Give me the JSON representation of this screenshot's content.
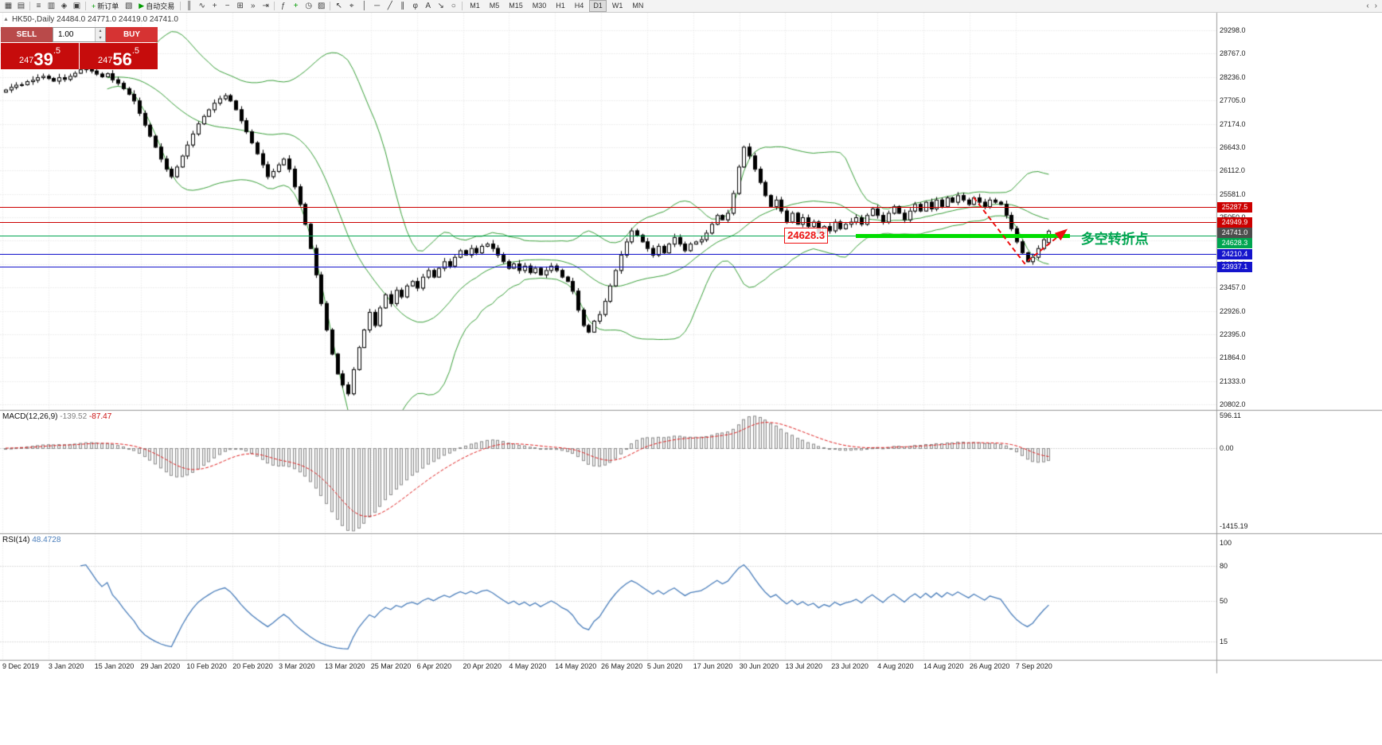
{
  "toolbar": {
    "items": [
      {
        "t": "icon",
        "name": "new-chart-icon",
        "glyph": "▦"
      },
      {
        "t": "icon",
        "name": "profiles-icon",
        "glyph": "▤"
      },
      {
        "t": "sep"
      },
      {
        "t": "icon",
        "name": "market-watch-icon",
        "glyph": "≡"
      },
      {
        "t": "icon",
        "name": "data-window-icon",
        "glyph": "▥"
      },
      {
        "t": "icon",
        "name": "navigator-icon",
        "glyph": "◈"
      },
      {
        "t": "icon",
        "name": "terminal-icon",
        "glyph": "▣"
      },
      {
        "t": "sep"
      },
      {
        "t": "button",
        "name": "new-order-button",
        "label": "新订单",
        "glyph": "+",
        "glyph_color": "#009b00"
      },
      {
        "t": "icon",
        "name": "strategy-tester-icon",
        "glyph": "▧"
      },
      {
        "t": "button",
        "name": "autotrading-button",
        "label": "自动交易",
        "glyph": "▶",
        "glyph_color": "#009b00"
      },
      {
        "t": "sep"
      },
      {
        "t": "icon",
        "name": "candlestick-chart-icon",
        "glyph": "║"
      },
      {
        "t": "icon",
        "name": "line-chart-icon",
        "glyph": "∿"
      },
      {
        "t": "icon",
        "name": "zoom-in-icon",
        "glyph": "+"
      },
      {
        "t": "icon",
        "name": "zoom-out-icon",
        "glyph": "−"
      },
      {
        "t": "icon",
        "name": "tile-windows-icon",
        "glyph": "⊞"
      },
      {
        "t": "icon",
        "name": "auto-scroll-icon",
        "glyph": "»"
      },
      {
        "t": "icon",
        "name": "chart-shift-icon",
        "glyph": "⇥"
      },
      {
        "t": "sep"
      },
      {
        "t": "icon",
        "name": "indicators-icon",
        "glyph": "ƒ"
      },
      {
        "t": "icon",
        "name": "add-indicator-icon",
        "glyph": "+",
        "glyph_color": "#009b00"
      },
      {
        "t": "icon",
        "name": "periods-icon",
        "glyph": "◷"
      },
      {
        "t": "icon",
        "name": "templates-icon",
        "glyph": "▨"
      },
      {
        "t": "sep"
      },
      {
        "t": "icon",
        "name": "cursor-icon",
        "glyph": "↖"
      },
      {
        "t": "icon",
        "name": "crosshair-icon",
        "glyph": "⌖"
      },
      {
        "t": "icon",
        "name": "vertical-line-icon",
        "glyph": "│"
      },
      {
        "t": "icon",
        "name": "horizontal-line-icon",
        "glyph": "─"
      },
      {
        "t": "icon",
        "name": "trendline-icon",
        "glyph": "╱"
      },
      {
        "t": "icon",
        "name": "channel-icon",
        "glyph": "∥"
      },
      {
        "t": "icon",
        "name": "fibonacci-icon",
        "glyph": "φ"
      },
      {
        "t": "icon",
        "name": "text-icon",
        "glyph": "A"
      },
      {
        "t": "icon",
        "name": "arrows-icon",
        "glyph": "↘"
      },
      {
        "t": "icon",
        "name": "shapes-icon",
        "glyph": "○"
      },
      {
        "t": "sep"
      }
    ],
    "timeframes": [
      "M1",
      "M5",
      "M15",
      "M30",
      "H1",
      "H4",
      "D1",
      "W1",
      "MN"
    ],
    "active_timeframe": "D1",
    "scroll_left": "‹",
    "scroll_right": "›"
  },
  "order_panel": {
    "sell_label": "SELL",
    "buy_label": "BUY",
    "volume": "1.00",
    "sell_price": {
      "prefix": "247",
      "big": "39",
      "frac": ".5",
      "full": "24739.5"
    },
    "buy_price": {
      "prefix": "247",
      "big": "56",
      "frac": ".5",
      "full": "24756.5"
    }
  },
  "chart": {
    "collapse_icon": "▲",
    "symbol_info": "HK50-,Daily 24484.0 24771.0 24419.0 24741.0",
    "price_axis": [
      29298,
      28767,
      28236,
      27705,
      27174,
      26643,
      26112,
      25581,
      25050,
      24519,
      23988,
      23457,
      22926,
      22395,
      21864,
      21333,
      20802
    ],
    "date_axis": [
      "9 Dec 2019",
      "3 Jan 2020",
      "15 Jan 2020",
      "29 Jan 2020",
      "10 Feb 2020",
      "20 Feb 2020",
      "3 Mar 2020",
      "13 Mar 2020",
      "25 Mar 2020",
      "6 Apr 2020",
      "20 Apr 2020",
      "4 May 2020",
      "14 May 2020",
      "26 May 2020",
      "5 Jun 2020",
      "17 Jun 2020",
      "30 Jun 2020",
      "13 Jul 2020",
      "23 Jul 2020",
      "4 Aug 2020",
      "14 Aug 2020",
      "26 Aug 2020",
      "7 Sep 2020"
    ],
    "levels": [
      {
        "price": 25287.5,
        "color": "#cc0000"
      },
      {
        "price": 24949.9,
        "color": "#cc0000"
      },
      {
        "price": 24628.3,
        "color": "#00a550"
      },
      {
        "price": 24210.4,
        "color": "#1414cc"
      },
      {
        "price": 23937.1,
        "color": "#1414cc"
      }
    ],
    "current_price_tag": {
      "price": 24741.0,
      "color": "#4d4d4d"
    },
    "annotations": {
      "support_price_label": {
        "text": "24628.3",
        "bar": 146,
        "price": 24628.3,
        "color": "#ee1111"
      },
      "trend_segment": {
        "price": 24628.3,
        "bar_start": 159,
        "bar_end": 199,
        "color": "#00dd00",
        "thickness": 5
      },
      "zigzag_arrow": {
        "points": [
          [
            181,
            25500
          ],
          [
            190.5,
            24000
          ],
          [
            198,
            24750
          ]
        ],
        "color": "#ee1111"
      },
      "turning_point_label": {
        "text": "多空转折点",
        "bar": 201,
        "price": 24660,
        "color": "#00a550"
      }
    }
  },
  "indicators": {
    "macd": {
      "title": "MACD(12,26,9)",
      "value": "-139.52",
      "signal": "-87.47",
      "axis": [
        {
          "text": "596.11",
          "value": 596.11
        },
        {
          "text": "0.00",
          "value": 0
        },
        {
          "text": "-1415.19",
          "value": -1415.19
        }
      ]
    },
    "rsi": {
      "title": "RSI(14)",
      "value": "48.4728",
      "axis": [
        100,
        80,
        50,
        15
      ],
      "levels": [
        80,
        50,
        15
      ]
    }
  },
  "chart_data": {
    "type": "candlestick",
    "symbol": "HK50",
    "period": "Daily",
    "ylim": [
      20802,
      29298
    ],
    "first_open": 27900,
    "wick_base": 18,
    "wick_var": 67,
    "last_candle": {
      "open": 24484.0,
      "high": 24771.0,
      "low": 24419.0,
      "close": 24741.0
    },
    "closes": [
      27950,
      28010,
      28060,
      28070,
      28140,
      28170,
      28230,
      28260,
      28210,
      28150,
      28230,
      28190,
      28260,
      28330,
      28410,
      28440,
      28380,
      28310,
      28250,
      28320,
      28180,
      28100,
      27980,
      27850,
      27700,
      27420,
      27150,
      26900,
      26650,
      26380,
      26150,
      25980,
      26200,
      26450,
      26700,
      26950,
      27180,
      27350,
      27500,
      27650,
      27750,
      27820,
      27700,
      27500,
      27250,
      27000,
      26750,
      26500,
      26250,
      25980,
      26100,
      26250,
      26380,
      26150,
      25750,
      25350,
      24900,
      24350,
      23750,
      23100,
      22500,
      21950,
      21500,
      21250,
      21050,
      21600,
      22100,
      22500,
      22900,
      22600,
      23000,
      23300,
      23100,
      23400,
      23250,
      23500,
      23600,
      23450,
      23700,
      23850,
      23700,
      23900,
      24050,
      23950,
      24150,
      24300,
      24200,
      24350,
      24250,
      24400,
      24450,
      24350,
      24200,
      24050,
      23900,
      24000,
      23850,
      23950,
      23800,
      23900,
      23750,
      23850,
      23950,
      23850,
      23700,
      23600,
      23380,
      22950,
      22600,
      22450,
      22700,
      22850,
      23150,
      23500,
      23850,
      24200,
      24500,
      24750,
      24650,
      24500,
      24350,
      24200,
      24400,
      24250,
      24450,
      24600,
      24450,
      24300,
      24450,
      24500,
      24550,
      24700,
      24900,
      25100,
      25000,
      25150,
      25600,
      26200,
      26650,
      26450,
      26150,
      25850,
      25550,
      25300,
      25450,
      25200,
      24950,
      25150,
      24900,
      25050,
      24850,
      24950,
      24700,
      24850,
      24750,
      24950,
      24800,
      24900,
      24950,
      25050,
      24900,
      25100,
      25250,
      25100,
      24950,
      25150,
      25300,
      25150,
      25000,
      25200,
      25350,
      25200,
      25400,
      25250,
      25450,
      25300,
      25500,
      25400,
      25550,
      25450,
      25350,
      25500,
      25400,
      25300,
      25450,
      25400,
      25350,
      25100,
      24800,
      24500,
      24250,
      24050,
      24150,
      24350,
      24550,
      24741
    ],
    "overlays": {
      "bollinger": {
        "period": 20,
        "deviation": 2
      }
    },
    "macd_params": {
      "fast": 12,
      "slow": 26,
      "signal": 9
    },
    "rsi_params": {
      "period": 14
    }
  }
}
